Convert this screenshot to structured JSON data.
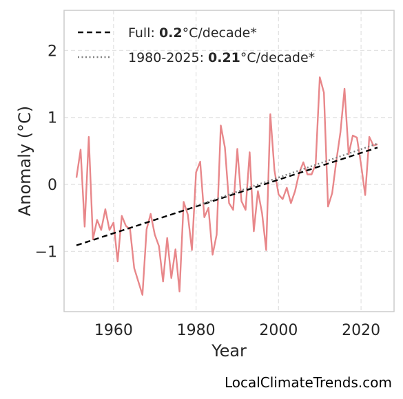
{
  "chart_data": {
    "type": "line",
    "xlabel": "Year",
    "ylabel": "Anomaly (°C)",
    "xlim": [
      1948,
      2028
    ],
    "ylim": [
      -1.9,
      2.6
    ],
    "xticks": [
      1960,
      1980,
      2000,
      2020
    ],
    "yticks": [
      -1,
      0,
      1,
      2
    ],
    "ytick_labels": [
      "−1",
      "0",
      "1",
      "2"
    ],
    "grid": true,
    "legend_position": "top-left",
    "series": [
      {
        "role": "observed",
        "color": "#e8878a",
        "x": [
          1951,
          1952,
          1953,
          1954,
          1955,
          1956,
          1957,
          1958,
          1959,
          1960,
          1961,
          1962,
          1963,
          1964,
          1965,
          1966,
          1967,
          1968,
          1969,
          1970,
          1971,
          1972,
          1973,
          1974,
          1975,
          1976,
          1977,
          1978,
          1979,
          1980,
          1981,
          1982,
          1983,
          1984,
          1985,
          1986,
          1987,
          1988,
          1989,
          1990,
          1991,
          1992,
          1993,
          1994,
          1995,
          1996,
          1997,
          1998,
          1999,
          2000,
          2001,
          2002,
          2003,
          2004,
          2005,
          2006,
          2007,
          2008,
          2009,
          2010,
          2011,
          2012,
          2013,
          2014,
          2015,
          2016,
          2017,
          2018,
          2019,
          2020,
          2021,
          2022,
          2023,
          2024
        ],
        "y": [
          0.1,
          0.52,
          -0.63,
          0.71,
          -0.82,
          -0.53,
          -0.68,
          -0.37,
          -0.68,
          -0.57,
          -1.15,
          -0.47,
          -0.62,
          -0.67,
          -1.25,
          -1.45,
          -1.65,
          -0.67,
          -0.44,
          -0.75,
          -0.92,
          -1.45,
          -0.8,
          -1.4,
          -0.97,
          -1.6,
          -0.26,
          -0.45,
          -0.98,
          0.18,
          0.34,
          -0.49,
          -0.35,
          -1.05,
          -0.75,
          0.88,
          0.55,
          -0.28,
          -0.38,
          0.53,
          -0.25,
          -0.38,
          0.48,
          -0.7,
          -0.1,
          -0.43,
          -0.98,
          1.05,
          0.21,
          -0.15,
          -0.22,
          -0.05,
          -0.28,
          -0.1,
          0.17,
          0.33,
          0.15,
          0.15,
          0.3,
          1.6,
          1.37,
          -0.33,
          -0.13,
          0.35,
          0.78,
          1.43,
          0.45,
          0.73,
          0.7,
          0.3,
          -0.16,
          0.71,
          0.58,
          0.6
        ]
      },
      {
        "role": "trend-full",
        "name": "Full",
        "color": "#000000",
        "x": [
          1951,
          2024
        ],
        "y": [
          -0.91,
          0.55
        ]
      },
      {
        "role": "trend-recent",
        "name": "1980-2025",
        "color": "#808080",
        "x": [
          1980,
          2024
        ],
        "y": [
          -0.32,
          0.61
        ]
      }
    ],
    "legend": [
      {
        "prefix": "Full: ",
        "value": "0.2",
        "suffix": "°C/decade*",
        "style": "dashed",
        "color": "#000000"
      },
      {
        "prefix": "1980-2025: ",
        "value": "0.21",
        "suffix": "°C/decade*",
        "style": "dotted",
        "color": "#808080"
      }
    ]
  },
  "footer": {
    "credit": "LocalClimateTrends.com"
  }
}
